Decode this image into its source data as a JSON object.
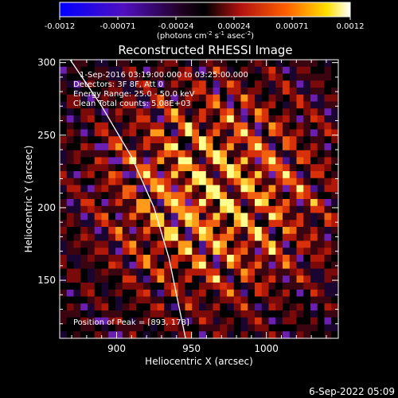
{
  "chart_data": {
    "type": "heatmap",
    "title": "Reconstructed RHESSI Image",
    "xlabel": "Heliocentric X (arcsec)",
    "ylabel": "Heliocentric Y (arcsec)",
    "xlim": [
      862,
      1048
    ],
    "ylim": [
      110,
      302
    ],
    "x_ticks": [
      900,
      950,
      1000
    ],
    "y_ticks": [
      150,
      200,
      250,
      300
    ],
    "colorbar": {
      "range": [
        -0.0012,
        0.0012
      ],
      "ticks": [
        "-0.0012",
        "-0.00071",
        "-0.00024",
        "0.00024",
        "0.00071",
        "0.0012"
      ],
      "label_main": "(photons cm",
      "label_exp1": "-2",
      "label_mid1": " s",
      "label_exp2": "-1",
      "label_mid2": " asec",
      "label_exp3": "-2",
      "label_end": ")"
    },
    "annotations": [
      "1-Sep-2016 03:19:00.000 to 03:25:00.000",
      "Detectors: 3F 8F, Att 0",
      "Energy Range: 25.0 - 50.0 keV",
      "Clean    Total counts: 5.08E+03"
    ],
    "peak_label": "Position of Peak = [893, 178]",
    "peak_position": [
      893,
      178
    ],
    "limb_curve": [
      [
        869,
        302
      ],
      [
        890,
        270
      ],
      [
        910,
        235
      ],
      [
        925,
        200
      ],
      [
        935,
        165
      ],
      [
        942,
        130
      ],
      [
        946,
        110
      ]
    ],
    "grid": false,
    "colors": {
      "background": "#000000",
      "text": "#ffffff",
      "limb": "#ffffff"
    }
  },
  "footer": {
    "timestamp": "6-Sep-2022 05:09"
  }
}
